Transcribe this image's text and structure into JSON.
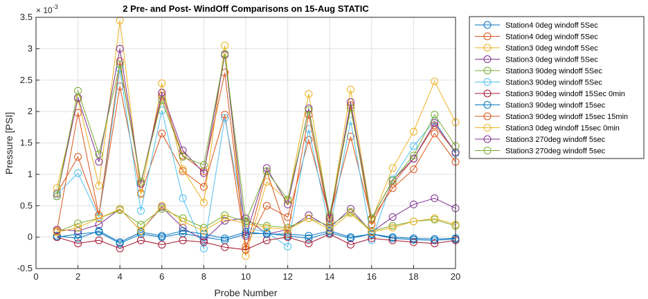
{
  "chart_data": {
    "type": "line",
    "title": "2 Pre- and Post- WindOff Comparisons on 15-Aug STATIC",
    "xlabel": "Probe Number",
    "ylabel": "Pressure [PSI]",
    "y_multiplier_label": "× 10",
    "y_multiplier_exponent": "-3",
    "xlim": [
      0,
      20
    ],
    "ylim": [
      -0.5,
      3.5
    ],
    "x_ticks": [
      "0",
      "2",
      "4",
      "6",
      "8",
      "10",
      "12",
      "14",
      "16",
      "18",
      "20"
    ],
    "y_ticks": [
      "-0.5",
      "0",
      "0.5",
      "1",
      "1.5",
      "2",
      "2.5",
      "3",
      "3.5"
    ],
    "grid": true,
    "legend_position": "outside-right-top",
    "marker": "circle",
    "x": [
      1,
      2,
      3,
      4,
      5,
      6,
      7,
      8,
      9,
      10,
      11,
      12,
      13,
      14,
      15,
      16,
      17,
      18,
      19,
      20
    ],
    "series": [
      {
        "name": "Station4 0deg windoff 5Sec",
        "color": "#0072BD",
        "values": [
          0.0,
          0.05,
          0.08,
          -0.1,
          0.05,
          0.0,
          0.06,
          0.0,
          -0.05,
          0.05,
          0.06,
          0.02,
          -0.02,
          0.07,
          -0.02,
          0.05,
          -0.02,
          -0.04,
          -0.05,
          -0.03
        ]
      },
      {
        "name": "Station4 0deg windoff 5Sec",
        "color": "#D95319",
        "values": [
          0.7,
          1.28,
          0.35,
          2.4,
          0.7,
          1.65,
          1.05,
          0.8,
          1.95,
          -0.15,
          0.5,
          0.32,
          1.55,
          0.32,
          1.6,
          0.28,
          0.78,
          1.08,
          1.65,
          1.2
        ]
      },
      {
        "name": "Station3 0deg windoff 5Sec",
        "color": "#EDB120",
        "values": [
          0.78,
          2.2,
          0.82,
          3.45,
          0.68,
          2.45,
          1.08,
          0.55,
          3.05,
          -0.3,
          0.88,
          0.58,
          2.28,
          0.28,
          2.35,
          0.27,
          1.1,
          1.68,
          2.48,
          1.83
        ]
      },
      {
        "name": "Station3 0deg windoff 5Sec",
        "color": "#7E2F8E",
        "values": [
          0.12,
          0.1,
          0.2,
          0.45,
          0.1,
          0.48,
          0.15,
          -0.05,
          0.26,
          0.3,
          0.05,
          0.12,
          0.35,
          0.15,
          0.45,
          0.08,
          0.32,
          0.52,
          0.62,
          0.46
        ]
      },
      {
        "name": "Station3 90deg windoff 5Sec",
        "color": "#77AC30",
        "values": [
          0.08,
          0.22,
          0.3,
          0.43,
          0.2,
          0.45,
          0.3,
          0.15,
          0.35,
          0.25,
          0.18,
          0.15,
          0.3,
          0.18,
          0.4,
          0.1,
          0.18,
          0.25,
          0.28,
          0.18
        ]
      },
      {
        "name": "Station3 90deg windoff 5Sec",
        "color": "#4DBEEE",
        "values": [
          0.68,
          1.02,
          0.32,
          2.68,
          0.42,
          2.02,
          0.62,
          -0.18,
          1.9,
          0.15,
          0.08,
          -0.15,
          1.72,
          0.12,
          1.85,
          -0.05,
          0.92,
          1.45,
          1.85,
          1.33
        ]
      },
      {
        "name": "Station3 90deg windoff 15Sec 0min",
        "color": "#A2142F",
        "values": [
          0.0,
          -0.1,
          -0.05,
          -0.18,
          -0.05,
          -0.12,
          -0.05,
          -0.08,
          -0.16,
          -0.2,
          -0.05,
          0.0,
          -0.1,
          0.05,
          -0.12,
          -0.02,
          -0.05,
          -0.08,
          -0.1,
          -0.05
        ]
      },
      {
        "name": "Station3 90deg windoff 15sec",
        "color": "#0072BD",
        "values": [
          0.02,
          -0.02,
          0.1,
          -0.08,
          0.08,
          0.02,
          0.1,
          0.05,
          -0.02,
          0.08,
          0.05,
          0.05,
          0.02,
          0.1,
          0.0,
          0.05,
          0.0,
          -0.02,
          -0.03,
          -0.02
        ]
      },
      {
        "name": "Station3 90deg windoff 15sec 15min",
        "color": "#D95319",
        "values": [
          0.1,
          1.98,
          0.35,
          2.8,
          0.85,
          2.25,
          1.3,
          1.05,
          2.62,
          -0.2,
          1.05,
          0.05,
          1.95,
          0.25,
          2.1,
          0.2,
          0.85,
          1.25,
          1.78,
          1.35
        ]
      },
      {
        "name": "Station3 0deg windoff 15sec 0min",
        "color": "#EDB120",
        "values": [
          0.08,
          0.15,
          0.3,
          0.45,
          0.1,
          0.5,
          0.25,
          0.1,
          0.3,
          0.22,
          0.15,
          0.12,
          0.3,
          0.12,
          0.38,
          0.08,
          0.15,
          0.25,
          0.3,
          0.2
        ]
      },
      {
        "name": "Station3 270deg windoff 5sec",
        "color": "#7E2F8E",
        "values": [
          0.65,
          2.22,
          1.2,
          3.0,
          0.85,
          2.3,
          1.38,
          1.02,
          2.9,
          0.02,
          1.1,
          0.52,
          2.05,
          0.3,
          2.15,
          0.3,
          0.9,
          1.25,
          1.82,
          1.35
        ]
      },
      {
        "name": "Station3 270deg windoff 5sec",
        "color": "#77AC30",
        "values": [
          0.65,
          2.33,
          1.32,
          2.75,
          0.88,
          2.18,
          1.28,
          1.15,
          2.92,
          0.25,
          1.05,
          0.6,
          2.02,
          0.35,
          2.05,
          0.3,
          0.9,
          1.3,
          1.95,
          1.45
        ]
      }
    ]
  }
}
